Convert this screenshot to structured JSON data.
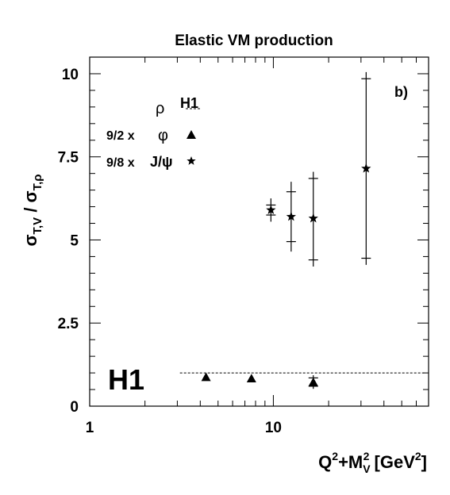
{
  "chart_data": {
    "type": "scatter",
    "title": "Elastic VM production",
    "panel_label": "b)",
    "watermark": "H1",
    "xlabel": {
      "main": "Q",
      "sup1": "2",
      "mid": "+M",
      "sub": "V",
      "sup2": "2",
      "unit": " [GeV",
      "unit_sup": "2",
      "close": "]"
    },
    "ylabel": {
      "s1": "σ",
      "sub1": "T,V",
      "sep": " / ",
      "s2": "σ",
      "sub2": "T,ρ"
    },
    "xscale": "log",
    "xlim": [
      1,
      70
    ],
    "ylim": [
      0,
      10.5
    ],
    "xticks": [
      {
        "value": 1,
        "label": "1"
      },
      {
        "value": 10,
        "label": "10"
      }
    ],
    "yticks": [
      {
        "value": 0,
        "label": "0"
      },
      {
        "value": 2.5,
        "label": "2.5"
      },
      {
        "value": 5,
        "label": "5"
      },
      {
        "value": 7.5,
        "label": "7.5"
      },
      {
        "value": 10,
        "label": "10"
      }
    ],
    "legend": {
      "title": "H1",
      "position": "top-left",
      "entries": [
        {
          "prefix": "",
          "label": "ρ",
          "marker": "dashed-line"
        },
        {
          "prefix": "9/2 x",
          "label": "φ",
          "marker": "triangle"
        },
        {
          "prefix": "9/8 x",
          "label": "J/ψ",
          "marker": "star"
        }
      ]
    },
    "series": [
      {
        "label": "ρ",
        "marker": "dashed-line",
        "reference_y": 1.0,
        "x_range": [
          3.1,
          68
        ]
      },
      {
        "label": "φ",
        "marker": "triangle",
        "points": [
          {
            "x": 4.3,
            "y": 0.87,
            "ylow": 0.87,
            "yhigh": 0.87
          },
          {
            "x": 7.6,
            "y": 0.83,
            "ylow": 0.83,
            "yhigh": 0.83
          },
          {
            "x": 16.5,
            "y": 0.72,
            "ylow": 0.52,
            "yhigh": 0.93,
            "inner": [
              0.6,
              0.85
            ]
          }
        ]
      },
      {
        "label": "J/ψ",
        "marker": "star",
        "points": [
          {
            "x": 9.7,
            "y": 5.9,
            "ylow": 5.55,
            "yhigh": 6.25,
            "inner": [
              5.75,
              6.05
            ]
          },
          {
            "x": 12.5,
            "y": 5.7,
            "ylow": 4.65,
            "yhigh": 6.75,
            "inner": [
              4.95,
              6.45
            ]
          },
          {
            "x": 16.5,
            "y": 5.65,
            "ylow": 4.2,
            "yhigh": 7.05,
            "inner": [
              4.4,
              6.85
            ]
          },
          {
            "x": 32.0,
            "y": 7.15,
            "ylow": 4.25,
            "yhigh": 10.05,
            "inner": [
              4.45,
              9.85
            ]
          }
        ]
      }
    ]
  }
}
